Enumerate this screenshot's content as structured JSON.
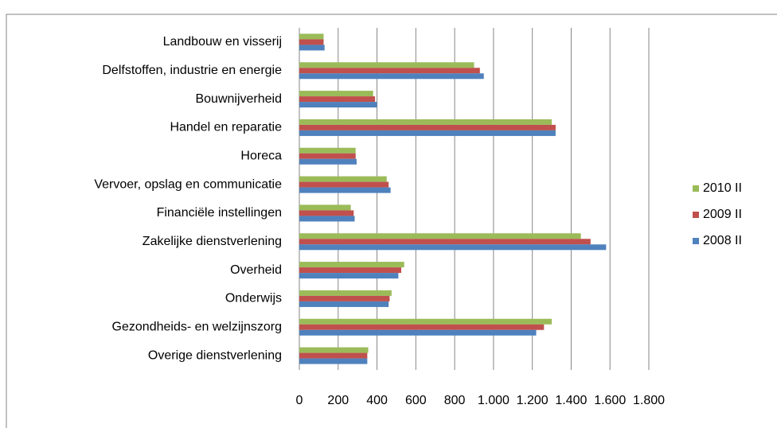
{
  "chart_data": {
    "type": "hbar",
    "categories": [
      "Landbouw en visserij",
      "Delfstoffen, industrie en energie",
      "Bouwnijverheid",
      "Handel en reparatie",
      "Horeca",
      "Vervoer, opslag en communicatie",
      "Financiële instellingen",
      "Zakelijke dienstverlening",
      "Overheid",
      "Onderwijs",
      "Gezondheids- en welzijnszorg",
      "Overige dienstverlening"
    ],
    "series": [
      {
        "name": "2010 II",
        "color": "#9bbb59",
        "values": [
          125,
          900,
          380,
          1300,
          290,
          450,
          265,
          1450,
          540,
          475,
          1300,
          355
        ]
      },
      {
        "name": "2009 II",
        "color": "#c0504d",
        "values": [
          125,
          930,
          390,
          1320,
          290,
          460,
          280,
          1500,
          525,
          465,
          1260,
          350
        ]
      },
      {
        "name": "2008 II",
        "color": "#4f81bd",
        "values": [
          130,
          950,
          400,
          1320,
          295,
          470,
          285,
          1580,
          510,
          460,
          1220,
          350
        ]
      }
    ],
    "xlim": [
      0,
      1800
    ],
    "xticks": [
      0,
      200,
      400,
      600,
      800,
      {
        "value": 1000,
        "label": "1.000"
      },
      {
        "value": 1200,
        "label": "1.200"
      },
      {
        "value": 1400,
        "label": "1.400"
      },
      {
        "value": 1600,
        "label": "1.600"
      },
      {
        "value": 1800,
        "label": "1.800"
      }
    ],
    "grid": true,
    "legend": "right"
  }
}
